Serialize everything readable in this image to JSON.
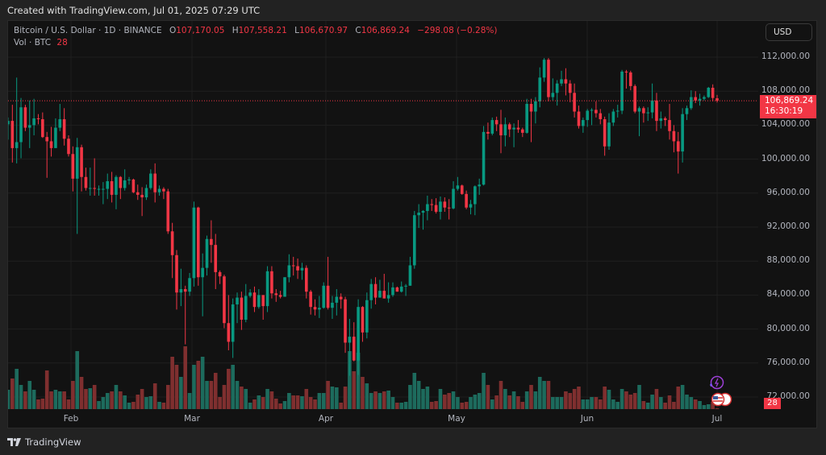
{
  "header": {
    "created": "Created with TradingView.com, Jul 01, 2025 07:29 UTC"
  },
  "legend": {
    "symbol": "Bitcoin / U.S. Dollar · 1D · BINANCE",
    "o_label": "O",
    "o": "107,170.05",
    "h_label": "H",
    "h": "107,558.21",
    "l_label": "L",
    "l": "106,670.97",
    "c_label": "C",
    "c": "106,869.24",
    "change": "−298.08 (−0.28%)",
    "vol_label": "Vol · BTC",
    "vol": "28"
  },
  "currency_button": "USD",
  "last_price": {
    "price": "106,869.24",
    "countdown": "16:30:19"
  },
  "volume_badge": "28",
  "brand": "TradingView",
  "icons": [
    "tradingview-logo-icon",
    "lightning-event-icon",
    "us-flag-icon"
  ],
  "colors": {
    "up": "#089981",
    "down": "#f23645",
    "vol_up": "#1d6b5d",
    "vol_down": "#7f2f2f",
    "background": "#121212"
  },
  "chart_data": {
    "type": "candlestick",
    "title": "",
    "ylim": [
      70000,
      114000
    ],
    "y_ticks": [
      "112,000.00",
      "108,000.00",
      "104,000.00",
      "100,000.00",
      "96,000.00",
      "92,000.00",
      "88,000.00",
      "84,000.00",
      "80,000.00",
      "76,000.00",
      "72,000.00"
    ],
    "x_ticks": [
      "Feb",
      "Mar",
      "Apr",
      "May",
      "Jun",
      "Jul"
    ],
    "grid": true,
    "columns": [
      "date",
      "open",
      "high",
      "low",
      "close",
      "volume"
    ],
    "candles": [
      [
        "Jan 17",
        100500,
        105800,
        99900,
        104100,
        40000
      ],
      [
        "Jan 18",
        104100,
        104900,
        102300,
        104500,
        24000
      ],
      [
        "Jan 19",
        104500,
        106400,
        99600,
        101300,
        38000
      ],
      [
        "Jan 20",
        101300,
        109600,
        99500,
        102000,
        50000
      ],
      [
        "Jan 21",
        102000,
        107200,
        100100,
        106100,
        30000
      ],
      [
        "Jan 22",
        106100,
        106400,
        103300,
        103700,
        22000
      ],
      [
        "Jan 23",
        103700,
        106900,
        101300,
        104000,
        35000
      ],
      [
        "Jan 24",
        104000,
        107100,
        102800,
        104800,
        24000
      ],
      [
        "Jan 25",
        104800,
        105300,
        104100,
        104700,
        12000
      ],
      [
        "Jan 26",
        104700,
        105500,
        102500,
        102600,
        13000
      ],
      [
        "Jan 27",
        102600,
        103200,
        97800,
        102100,
        48000
      ],
      [
        "Jan 28",
        102100,
        103800,
        100300,
        101300,
        22000
      ],
      [
        "Jan 29",
        101300,
        104800,
        101300,
        103700,
        24000
      ],
      [
        "Jan 30",
        103700,
        106500,
        103300,
        104700,
        22000
      ],
      [
        "Jan 31",
        104700,
        106000,
        101600,
        102400,
        22000
      ],
      [
        "Feb 01",
        102400,
        102800,
        100300,
        100600,
        12000
      ],
      [
        "Feb 02",
        100600,
        101500,
        96200,
        97700,
        35000
      ],
      [
        "Feb 03",
        97700,
        102500,
        91200,
        101400,
        72000
      ],
      [
        "Feb 04",
        101400,
        101700,
        96200,
        97900,
        40000
      ],
      [
        "Feb 05",
        97900,
        99000,
        96300,
        96600,
        25000
      ],
      [
        "Feb 06",
        96600,
        99000,
        95700,
        96600,
        26000
      ],
      [
        "Feb 07",
        96600,
        100100,
        95700,
        96500,
        30000
      ],
      [
        "Feb 08",
        96500,
        96900,
        95700,
        96500,
        10000
      ],
      [
        "Feb 09",
        96500,
        97300,
        94700,
        96500,
        15000
      ],
      [
        "Feb 10",
        96500,
        98300,
        95300,
        97400,
        20000
      ],
      [
        "Feb 11",
        97400,
        98500,
        94900,
        95800,
        22000
      ],
      [
        "Feb 12",
        95800,
        98100,
        94100,
        97900,
        30000
      ],
      [
        "Feb 13",
        97900,
        98000,
        95300,
        96600,
        22000
      ],
      [
        "Feb 14",
        96600,
        98800,
        96300,
        97500,
        17000
      ],
      [
        "Feb 15",
        97500,
        97900,
        97000,
        97600,
        8000
      ],
      [
        "Feb 16",
        97600,
        97700,
        96000,
        96100,
        9000
      ],
      [
        "Feb 17",
        96100,
        97000,
        95200,
        95800,
        18000
      ],
      [
        "Feb 18",
        95800,
        96700,
        93300,
        95500,
        25000
      ],
      [
        "Feb 19",
        95500,
        97000,
        95200,
        96600,
        15000
      ],
      [
        "Feb 20",
        96600,
        98800,
        96400,
        98300,
        16000
      ],
      [
        "Feb 21",
        98300,
        99500,
        94900,
        96100,
        32000
      ],
      [
        "Feb 22",
        96100,
        96900,
        95700,
        96500,
        9000
      ],
      [
        "Feb 23",
        96500,
        96700,
        95300,
        96200,
        8000
      ],
      [
        "Feb 24",
        96200,
        96500,
        91200,
        91500,
        30000
      ],
      [
        "Feb 25",
        91500,
        92500,
        86000,
        88700,
        65000
      ],
      [
        "Feb 26",
        88700,
        89300,
        82300,
        84300,
        55000
      ],
      [
        "Feb 27",
        84300,
        87100,
        82700,
        84700,
        40000
      ],
      [
        "Feb 28",
        84700,
        85100,
        78200,
        84400,
        78000
      ],
      [
        "Mar 01",
        84400,
        86600,
        83900,
        86000,
        20000
      ],
      [
        "Mar 02",
        86000,
        95000,
        85000,
        94300,
        55000
      ],
      [
        "Mar 03",
        94300,
        94400,
        85100,
        86100,
        60000
      ],
      [
        "Mar 04",
        86100,
        88900,
        81500,
        87200,
        65000
      ],
      [
        "Mar 05",
        87200,
        91000,
        86300,
        90600,
        35000
      ],
      [
        "Mar 06",
        90600,
        92800,
        87800,
        89900,
        35000
      ],
      [
        "Mar 07",
        89900,
        91200,
        84700,
        86700,
        45000
      ],
      [
        "Mar 08",
        86700,
        86900,
        85300,
        86200,
        15000
      ],
      [
        "Mar 09",
        86200,
        86400,
        80100,
        80700,
        30000
      ],
      [
        "Mar 10",
        80700,
        84000,
        77500,
        78500,
        50000
      ],
      [
        "Mar 11",
        78500,
        83600,
        76600,
        82900,
        55000
      ],
      [
        "Mar 12",
        82900,
        84300,
        80700,
        83700,
        35000
      ],
      [
        "Mar 13",
        83700,
        84400,
        79900,
        81100,
        28000
      ],
      [
        "Mar 14",
        81100,
        85300,
        80800,
        83900,
        25000
      ],
      [
        "Mar 15",
        83900,
        84700,
        83700,
        84300,
        8000
      ],
      [
        "Mar 16",
        84300,
        85000,
        82000,
        82600,
        12000
      ],
      [
        "Mar 17",
        82600,
        84700,
        82400,
        84000,
        17000
      ],
      [
        "Mar 18",
        84000,
        84000,
        81100,
        82700,
        15000
      ],
      [
        "Mar 19",
        82700,
        87400,
        82000,
        86800,
        25000
      ],
      [
        "Mar 20",
        86800,
        87400,
        83600,
        84200,
        22000
      ],
      [
        "Mar 21",
        84200,
        84700,
        83200,
        84000,
        13000
      ],
      [
        "Mar 22",
        84000,
        84500,
        83600,
        83800,
        7000
      ],
      [
        "Mar 23",
        83800,
        86100,
        83800,
        86100,
        10000
      ],
      [
        "Mar 24",
        86100,
        88800,
        85500,
        87500,
        20000
      ],
      [
        "Mar 25",
        87500,
        88500,
        86300,
        87400,
        17000
      ],
      [
        "Mar 26",
        87400,
        88300,
        85900,
        86900,
        17000
      ],
      [
        "Mar 27",
        86900,
        87800,
        85800,
        87200,
        16000
      ],
      [
        "Mar 28",
        87200,
        87500,
        83600,
        84400,
        25000
      ],
      [
        "Mar 29",
        84400,
        84600,
        81700,
        82600,
        15000
      ],
      [
        "Mar 30",
        82600,
        83500,
        81600,
        82300,
        12000
      ],
      [
        "Mar 31",
        82300,
        83900,
        81300,
        82500,
        20000
      ],
      [
        "Apr 01",
        82500,
        85500,
        82400,
        85100,
        20000
      ],
      [
        "Apr 02",
        85100,
        88500,
        82300,
        82500,
        35000
      ],
      [
        "Apr 03",
        82500,
        83900,
        81200,
        83100,
        28000
      ],
      [
        "Apr 04",
        83100,
        84700,
        81600,
        83800,
        27000
      ],
      [
        "Apr 05",
        83800,
        84200,
        82400,
        83500,
        8000
      ],
      [
        "Apr 06",
        83500,
        83800,
        77200,
        78400,
        28000
      ],
      [
        "Apr 07",
        78400,
        81200,
        74500,
        79100,
        72000
      ],
      [
        "Apr 08",
        79100,
        80800,
        76200,
        76300,
        47000
      ],
      [
        "Apr 09",
        76300,
        83500,
        74600,
        82600,
        70000
      ],
      [
        "Apr 10",
        82600,
        82700,
        78500,
        79600,
        40000
      ],
      [
        "Apr 11",
        79600,
        84300,
        78900,
        83400,
        32000
      ],
      [
        "Apr 12",
        83400,
        85900,
        82400,
        85300,
        20000
      ],
      [
        "Apr 13",
        85300,
        86100,
        82900,
        83700,
        22000
      ],
      [
        "Apr 14",
        83700,
        85800,
        83700,
        84500,
        20000
      ],
      [
        "Apr 15",
        84500,
        86500,
        83600,
        83600,
        22000
      ],
      [
        "Apr 16",
        83600,
        85500,
        83100,
        84000,
        23000
      ],
      [
        "Apr 17",
        84000,
        85500,
        83800,
        84900,
        15000
      ],
      [
        "Apr 18",
        84900,
        85000,
        84400,
        84400,
        8000
      ],
      [
        "Apr 19",
        84400,
        85600,
        84300,
        85000,
        8000
      ],
      [
        "Apr 20",
        85000,
        85300,
        83900,
        85100,
        9000
      ],
      [
        "Apr 21",
        85100,
        88500,
        85100,
        87500,
        30000
      ],
      [
        "Apr 22",
        87500,
        93900,
        87100,
        93400,
        45000
      ],
      [
        "Apr 23",
        93400,
        94700,
        91900,
        93700,
        35000
      ],
      [
        "Apr 24",
        93700,
        94000,
        91700,
        93900,
        25000
      ],
      [
        "Apr 25",
        93900,
        95700,
        92800,
        94700,
        28000
      ],
      [
        "Apr 26",
        94700,
        95300,
        93900,
        94600,
        9000
      ],
      [
        "Apr 27",
        94600,
        95400,
        93600,
        93800,
        10000
      ],
      [
        "Apr 28",
        93800,
        95600,
        92900,
        95000,
        25000
      ],
      [
        "Apr 29",
        95000,
        95500,
        93800,
        94300,
        18000
      ],
      [
        "Apr 30",
        94300,
        95300,
        92900,
        94200,
        20000
      ],
      [
        "May 01",
        94200,
        97400,
        94100,
        96500,
        22000
      ],
      [
        "May 02",
        96500,
        97900,
        96300,
        96900,
        15000
      ],
      [
        "May 03",
        96900,
        97000,
        95800,
        95900,
        8000
      ],
      [
        "May 04",
        95900,
        96300,
        94100,
        94300,
        9000
      ],
      [
        "May 05",
        94300,
        95200,
        93500,
        94700,
        15000
      ],
      [
        "May 06",
        94700,
        96900,
        93400,
        96800,
        18000
      ],
      [
        "May 07",
        96800,
        97700,
        95800,
        97000,
        20000
      ],
      [
        "May 08",
        97000,
        103900,
        96900,
        103200,
        45000
      ],
      [
        "May 09",
        103200,
        104300,
        102300,
        103000,
        30000
      ],
      [
        "May 10",
        103000,
        104900,
        102800,
        104600,
        12000
      ],
      [
        "May 11",
        104600,
        105000,
        103300,
        104100,
        17000
      ],
      [
        "May 12",
        104100,
        105800,
        100700,
        102800,
        35000
      ],
      [
        "May 13",
        102800,
        104900,
        101500,
        104100,
        25000
      ],
      [
        "May 14",
        104100,
        104300,
        102600,
        103500,
        17000
      ],
      [
        "May 15",
        103500,
        104200,
        101400,
        103700,
        22000
      ],
      [
        "May 16",
        103700,
        104600,
        103100,
        103500,
        16000
      ],
      [
        "May 17",
        103500,
        103700,
        102600,
        103100,
        9000
      ],
      [
        "May 18",
        103100,
        107100,
        103000,
        106500,
        22000
      ],
      [
        "May 19",
        106500,
        107100,
        102000,
        105600,
        30000
      ],
      [
        "May 20",
        105600,
        107300,
        104200,
        106800,
        22000
      ],
      [
        "May 21",
        106800,
        110800,
        106100,
        109600,
        40000
      ],
      [
        "May 22",
        109600,
        111900,
        109100,
        111700,
        35000
      ],
      [
        "May 23",
        111700,
        111900,
        106800,
        107300,
        35000
      ],
      [
        "May 24",
        107300,
        109500,
        106900,
        107800,
        15000
      ],
      [
        "May 25",
        107800,
        109300,
        106300,
        108900,
        15000
      ],
      [
        "May 26",
        108900,
        110400,
        108600,
        109400,
        15000
      ],
      [
        "May 27",
        109400,
        110700,
        107500,
        108900,
        22000
      ],
      [
        "May 28",
        108900,
        109300,
        106700,
        107800,
        20000
      ],
      [
        "May 29",
        107800,
        108900,
        104900,
        105600,
        25000
      ],
      [
        "May 30",
        105600,
        106300,
        103600,
        103900,
        28000
      ],
      [
        "May 31",
        103900,
        104900,
        103100,
        104600,
        12000
      ],
      [
        "Jun 01",
        104600,
        105900,
        103800,
        105700,
        12000
      ],
      [
        "Jun 02",
        105700,
        106000,
        104000,
        105800,
        15000
      ],
      [
        "Jun 03",
        105800,
        106800,
        104900,
        105400,
        15000
      ],
      [
        "Jun 04",
        105400,
        105900,
        104100,
        104700,
        12000
      ],
      [
        "Jun 05",
        104700,
        105000,
        100400,
        101500,
        28000
      ],
      [
        "Jun 06",
        101500,
        105400,
        101100,
        104300,
        24000
      ],
      [
        "Jun 07",
        104300,
        105900,
        103900,
        105600,
        12000
      ],
      [
        "Jun 08",
        105600,
        106400,
        104900,
        105700,
        9000
      ],
      [
        "Jun 09",
        105700,
        110500,
        105300,
        110300,
        25000
      ],
      [
        "Jun 10",
        110300,
        110500,
        108300,
        110200,
        22000
      ],
      [
        "Jun 11",
        110200,
        110400,
        108100,
        108600,
        18000
      ],
      [
        "Jun 12",
        108600,
        108800,
        105400,
        105600,
        20000
      ],
      [
        "Jun 13",
        105600,
        106200,
        102700,
        106000,
        30000
      ],
      [
        "Jun 14",
        106000,
        106200,
        104300,
        105400,
        10000
      ],
      [
        "Jun 15",
        105400,
        106100,
        104500,
        105500,
        8000
      ],
      [
        "Jun 16",
        105500,
        108900,
        104800,
        106900,
        18000
      ],
      [
        "Jun 17",
        106900,
        107800,
        103300,
        104500,
        25000
      ],
      [
        "Jun 18",
        104500,
        105600,
        103600,
        104800,
        15000
      ],
      [
        "Jun 19",
        104800,
        105000,
        103900,
        104600,
        8000
      ],
      [
        "Jun 20",
        104600,
        106500,
        102300,
        103300,
        17000
      ],
      [
        "Jun 21",
        103300,
        104000,
        100800,
        102100,
        9000
      ],
      [
        "Jun 22",
        102100,
        103200,
        98300,
        100900,
        28000
      ],
      [
        "Jun 23",
        100900,
        106000,
        99600,
        105300,
        30000
      ],
      [
        "Jun 24",
        105300,
        106300,
        104600,
        106000,
        18000
      ],
      [
        "Jun 25",
        106000,
        108100,
        105800,
        107300,
        15000
      ],
      [
        "Jun 26",
        107300,
        108000,
        106600,
        106900,
        12000
      ],
      [
        "Jun 27",
        106900,
        107700,
        106300,
        107100,
        10000
      ],
      [
        "Jun 28",
        107100,
        107500,
        106900,
        107300,
        5000
      ],
      [
        "Jun 29",
        107300,
        108500,
        107200,
        108400,
        6000
      ],
      [
        "Jun 30",
        108400,
        108800,
        106800,
        107200,
        9000
      ],
      [
        "Jul 01",
        107170.05,
        107558.21,
        106670.97,
        106869.24,
        28
      ]
    ],
    "last_price": 106869.24
  }
}
